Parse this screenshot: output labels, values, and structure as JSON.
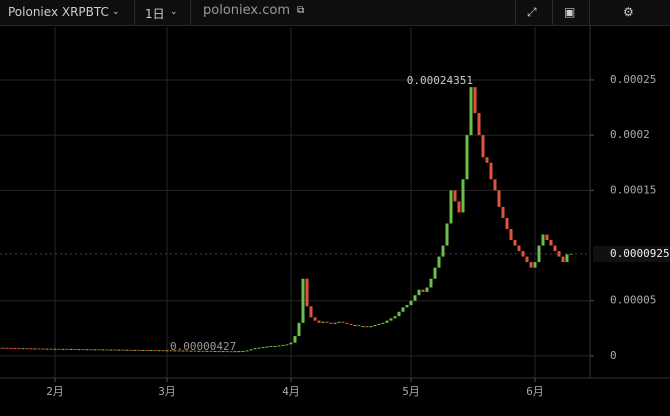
{
  "toolbar": {
    "symbol": "Poloniex XRPBTC",
    "interval": "1日",
    "source": "poloniex.com"
  },
  "chart_data": {
    "type": "candlestick",
    "categories": [
      null,
      null,
      null,
      null,
      null,
      null,
      null,
      null,
      null,
      null,
      null,
      null,
      null,
      null,
      "2月",
      null,
      null,
      null,
      null,
      null,
      null,
      null,
      null,
      null,
      null,
      null,
      null,
      null,
      null,
      null,
      null,
      null,
      null,
      null,
      null,
      null,
      null,
      null,
      null,
      null,
      null,
      null,
      "3月",
      null,
      null,
      null,
      null,
      null,
      null,
      null,
      null,
      null,
      null,
      null,
      null,
      null,
      null,
      null,
      null,
      null,
      null,
      null,
      null,
      null,
      null,
      null,
      null,
      null,
      null,
      null,
      null,
      null,
      null,
      "4月",
      null,
      null,
      null,
      null,
      null,
      null,
      null,
      null,
      null,
      null,
      null,
      null,
      null,
      null,
      null,
      null,
      null,
      null,
      null,
      null,
      null,
      null,
      null,
      null,
      null,
      null,
      null,
      null,
      null,
      "5月",
      null,
      null,
      null,
      null,
      null,
      null,
      null,
      null,
      null,
      null,
      null,
      null,
      null,
      null,
      null,
      null,
      null,
      null,
      null,
      null,
      null,
      null,
      null,
      null,
      null,
      null,
      null,
      null,
      null,
      null,
      "6月",
      null,
      null,
      null,
      null,
      null,
      null,
      null,
      null,
      null
    ],
    "close": [
      7.5e-06,
      7.4e-06,
      7.3e-06,
      7.2e-06,
      7.1e-06,
      7e-06,
      7e-06,
      6.9e-06,
      6.8e-06,
      6.8e-06,
      6.7e-06,
      6.6e-06,
      6.6e-06,
      6.5e-06,
      6.5e-06,
      6.4e-06,
      6.4e-06,
      6.3e-06,
      6.3e-06,
      6.2e-06,
      6.2e-06,
      6.1e-06,
      6.1e-06,
      6e-06,
      6e-06,
      5.9e-06,
      5.9e-06,
      5.8e-06,
      5.8e-06,
      5.7e-06,
      5.7e-06,
      5.6e-06,
      5.6e-06,
      5.5e-06,
      5.5e-06,
      5.4e-06,
      5.4e-06,
      5.3e-06,
      5.3e-06,
      5.2e-06,
      5.2e-06,
      5.1e-06,
      5.1e-06,
      5e-06,
      5e-06,
      4.9e-06,
      4.9e-06,
      4.8e-06,
      4.8e-06,
      4.7e-06,
      4.7e-06,
      4.6e-06,
      4.6e-06,
      4.5e-06,
      4.5e-06,
      4.4e-06,
      4.4e-06,
      4.3e-06,
      4.27e-06,
      4.3e-06,
      4.4e-06,
      4.5e-06,
      5e-06,
      6e-06,
      7e-06,
      7.5e-06,
      8e-06,
      8.5e-06,
      9e-06,
      9e-06,
      9.5e-06,
      1e-05,
      1.05e-05,
      1.2e-05,
      1.8e-05,
      3e-05,
      7e-05,
      4.5e-05,
      3.5e-05,
      3.2e-05,
      3e-05,
      3.1e-05,
      3e-05,
      2.9e-05,
      3e-05,
      3.1e-05,
      3e-05,
      2.9e-05,
      2.8e-05,
      2.8e-05,
      2.7e-05,
      2.7e-05,
      2.6e-05,
      2.7e-05,
      2.8e-05,
      2.9e-05,
      3e-05,
      3.2e-05,
      3.4e-05,
      3.6e-05,
      4e-05,
      4.4e-05,
      4.6e-05,
      5e-05,
      5.5e-05,
      6e-05,
      5.8e-05,
      6.2e-05,
      7e-05,
      8e-05,
      9e-05,
      0.0001,
      0.00012,
      0.00015,
      0.00014,
      0.00013,
      0.00016,
      0.0002,
      0.00024351,
      0.00022,
      0.0002,
      0.00018,
      0.000175,
      0.00016,
      0.00015,
      0.000135,
      0.000125,
      0.000115,
      0.000105,
      0.0001,
      9.5e-05,
      9e-05,
      8.5e-05,
      8e-05,
      8.5e-05,
      0.0001,
      0.00011,
      0.000105,
      0.0001,
      9.5e-05,
      9e-05,
      8.5e-05,
      9.2e-05,
      9.25e-05
    ],
    "up_color": "#6cc04a",
    "down_color": "#e0533c",
    "ylim": [
      -2e-05,
      0.000298
    ],
    "yticks": [
      0,
      5e-05,
      0.00015,
      0.0002,
      0.00025
    ],
    "grid": true,
    "max_label": 0.00024351,
    "min_label": 4.27e-06,
    "last_price": 9.25e-05
  }
}
